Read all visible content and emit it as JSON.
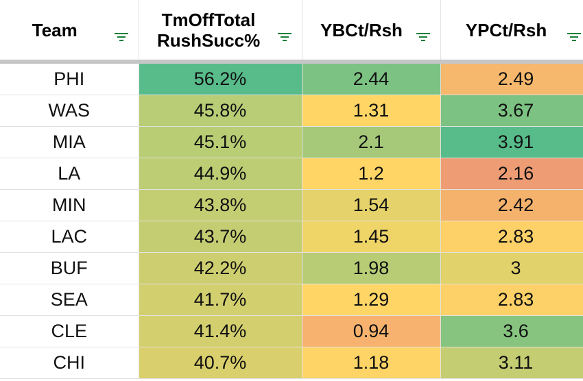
{
  "headers": [
    {
      "label": "Team",
      "name": "col-header-team"
    },
    {
      "label": "TmOffTotal RushSucc%",
      "name": "col-header-rush-succ"
    },
    {
      "label": "YBCt/Rsh",
      "name": "col-header-ybc"
    },
    {
      "label": "YPCt/Rsh",
      "name": "col-header-ypc"
    }
  ],
  "rows": [
    {
      "team": "PHI",
      "succ": "56.2%",
      "ybc": "2.44",
      "ypc": "2.49"
    },
    {
      "team": "WAS",
      "succ": "45.8%",
      "ybc": "1.31",
      "ypc": "3.67"
    },
    {
      "team": "MIA",
      "succ": "45.1%",
      "ybc": "2.1",
      "ypc": "3.91"
    },
    {
      "team": "LA",
      "succ": "44.9%",
      "ybc": "1.2",
      "ypc": "2.16"
    },
    {
      "team": "MIN",
      "succ": "43.8%",
      "ybc": "1.54",
      "ypc": "2.42"
    },
    {
      "team": "LAC",
      "succ": "43.7%",
      "ybc": "1.45",
      "ypc": "2.83"
    },
    {
      "team": "BUF",
      "succ": "42.2%",
      "ybc": "1.98",
      "ypc": "3"
    },
    {
      "team": "SEA",
      "succ": "41.7%",
      "ybc": "1.29",
      "ypc": "2.83"
    },
    {
      "team": "CLE",
      "succ": "41.4%",
      "ybc": "0.94",
      "ypc": "3.6"
    },
    {
      "team": "CHI",
      "succ": "40.7%",
      "ybc": "1.18",
      "ypc": "3.11"
    }
  ],
  "cell_colors": {
    "succ": [
      "#57bb8a",
      "#b8cd75",
      "#b9cd74",
      "#bccd74",
      "#c3cd72",
      "#c4cd72",
      "#cdce6f",
      "#d2cf6e",
      "#d4cf6e",
      "#d9cf6c"
    ],
    "ybc": [
      "#7cc282",
      "#ffd666",
      "#a5c979",
      "#ffd566",
      "#e5d26a",
      "#efd468",
      "#b7cc75",
      "#ffd666",
      "#f6b26e",
      "#ffd466"
    ],
    "ypc": [
      "#f6b86c",
      "#7cc282",
      "#57bb8a",
      "#ee9c74",
      "#f4b26d",
      "#fdd167",
      "#e1d26b",
      "#fdd167",
      "#87c47f",
      "#c4cd72"
    ]
  },
  "colors": {
    "filter_icon": "#188038",
    "header_divider": "#c6c6c6",
    "gridline": "#e2e2e2"
  }
}
